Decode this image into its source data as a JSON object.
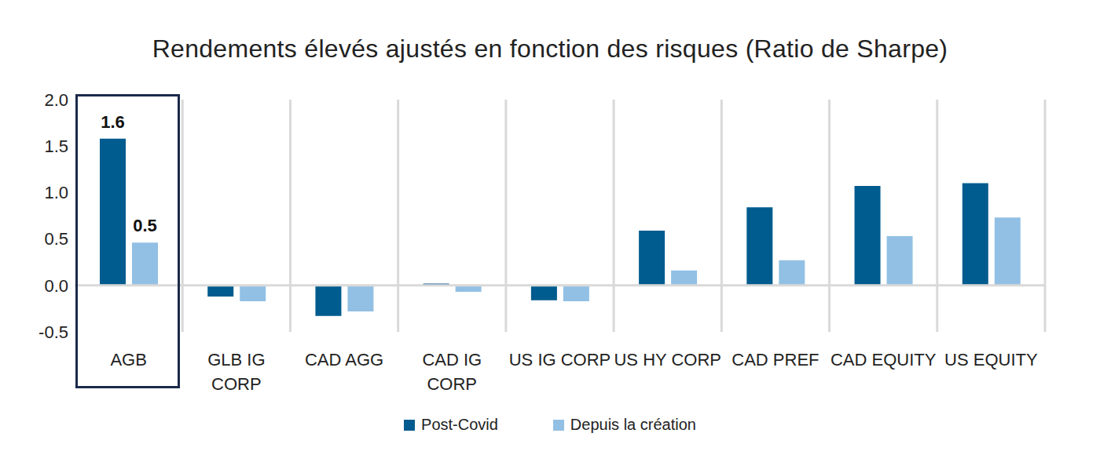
{
  "chart_data": {
    "type": "bar",
    "title": "Rendements élevés ajustés en fonction des risques (Ratio de Sharpe)",
    "categories": [
      "AGB",
      "GLB IG CORP",
      "CAD AGG",
      "CAD IG CORP",
      "US IG CORP",
      "US HY CORP",
      "CAD PREF",
      "CAD EQUITY",
      "US EQUITY"
    ],
    "series": [
      {
        "name": "Post-Covid",
        "color": "#005b8e",
        "values": [
          1.58,
          -0.12,
          -0.33,
          0.02,
          -0.16,
          0.59,
          0.84,
          1.07,
          1.1
        ],
        "value_labels": [
          "1.6",
          null,
          null,
          null,
          null,
          null,
          null,
          null,
          null
        ]
      },
      {
        "name": "Depuis la création",
        "color": "#92c0e4",
        "values": [
          0.46,
          -0.17,
          -0.28,
          -0.07,
          -0.17,
          0.16,
          0.27,
          0.53,
          0.73
        ],
        "value_labels": [
          "0.5",
          null,
          null,
          null,
          null,
          null,
          null,
          null,
          null
        ]
      }
    ],
    "ylim": [
      -0.5,
      2.0
    ],
    "yticks": [
      -0.5,
      {
        "value": 0,
        "label": "0.0"
      },
      0.5,
      {
        "value": 1,
        "label": "1.0"
      },
      1.5,
      {
        "value": 2,
        "label": "2.0"
      }
    ],
    "grid": true
  }
}
